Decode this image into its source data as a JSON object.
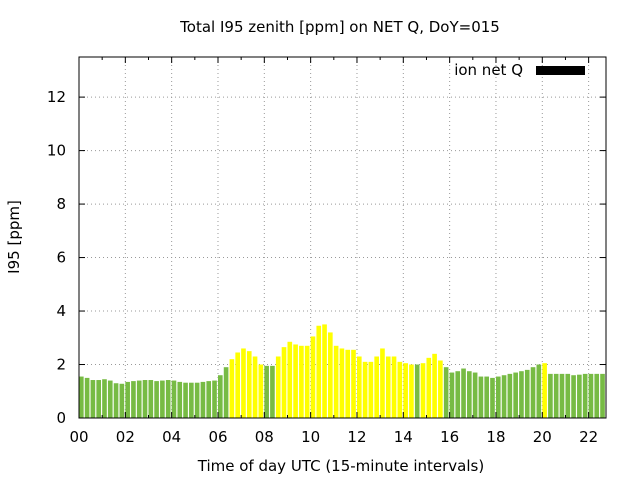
{
  "chart_data": {
    "type": "bar",
    "title": "Total I95 zenith [ppm] on NET Q, DoY=015",
    "xlabel": "Time of day UTC (15-minute intervals)",
    "ylabel": "I95 [ppm]",
    "legend": {
      "label": "ion net Q",
      "color": "#000000",
      "position": "top-right"
    },
    "ylim": [
      0,
      13.5
    ],
    "xlim": [
      0,
      22.75
    ],
    "grid": true,
    "x_ticks": [
      "00",
      "02",
      "04",
      "06",
      "08",
      "10",
      "12",
      "14",
      "16",
      "18",
      "20",
      "22"
    ],
    "y_ticks": [
      "0",
      "2",
      "4",
      "6",
      "8",
      "10",
      "12"
    ],
    "colors": {
      "green": "#77bb44",
      "yellow": "#ffff00"
    },
    "interval_hours": 0.25,
    "values": [
      1.55,
      1.5,
      1.42,
      1.42,
      1.45,
      1.4,
      1.3,
      1.28,
      1.35,
      1.38,
      1.4,
      1.42,
      1.42,
      1.38,
      1.4,
      1.42,
      1.4,
      1.35,
      1.32,
      1.32,
      1.32,
      1.35,
      1.38,
      1.4,
      1.6,
      1.9,
      2.2,
      2.45,
      2.6,
      2.5,
      2.3,
      2.0,
      1.95,
      1.95,
      2.3,
      2.65,
      2.85,
      2.75,
      2.7,
      2.7,
      3.05,
      3.45,
      3.5,
      3.2,
      2.7,
      2.6,
      2.55,
      2.55,
      2.3,
      2.1,
      2.1,
      2.3,
      2.6,
      2.3,
      2.3,
      2.1,
      2.05,
      2.0,
      2.0,
      2.05,
      2.25,
      2.4,
      2.15,
      1.9,
      1.7,
      1.75,
      1.85,
      1.75,
      1.7,
      1.55,
      1.55,
      1.5,
      1.55,
      1.6,
      1.65,
      1.7,
      1.75,
      1.8,
      1.9,
      2.0,
      2.05,
      1.65,
      1.65,
      1.65,
      1.65,
      1.6,
      1.62,
      1.65,
      1.65,
      1.65,
      1.65
    ],
    "bar_colors": [
      "green",
      "green",
      "green",
      "green",
      "green",
      "green",
      "green",
      "green",
      "green",
      "green",
      "green",
      "green",
      "green",
      "green",
      "green",
      "green",
      "green",
      "green",
      "green",
      "green",
      "green",
      "green",
      "green",
      "green",
      "green",
      "green",
      "yellow",
      "yellow",
      "yellow",
      "yellow",
      "yellow",
      "yellow",
      "green",
      "green",
      "yellow",
      "yellow",
      "yellow",
      "yellow",
      "yellow",
      "yellow",
      "yellow",
      "yellow",
      "yellow",
      "yellow",
      "yellow",
      "yellow",
      "yellow",
      "yellow",
      "yellow",
      "yellow",
      "yellow",
      "yellow",
      "yellow",
      "yellow",
      "yellow",
      "yellow",
      "yellow",
      "yellow",
      "green",
      "yellow",
      "yellow",
      "yellow",
      "yellow",
      "green",
      "green",
      "green",
      "green",
      "green",
      "green",
      "green",
      "green",
      "green",
      "green",
      "green",
      "green",
      "green",
      "green",
      "green",
      "green",
      "green",
      "yellow",
      "green",
      "green",
      "green",
      "green",
      "green",
      "green",
      "green",
      "green",
      "green",
      "green"
    ]
  }
}
